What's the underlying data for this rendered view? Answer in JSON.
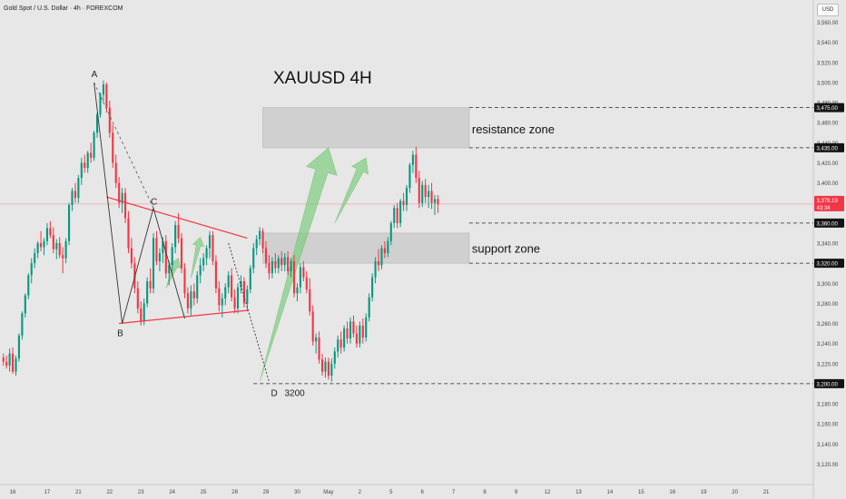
{
  "header": {
    "title": "Gold Spot / U.S. Dollar · 4h · FOREXCOM"
  },
  "currency_button": "USD",
  "annotations": {
    "main_title": "XAUUSD  4H",
    "resistance": "resistance zone",
    "support": "support zone",
    "label_a": "A",
    "label_b": "B",
    "label_c": "C",
    "label_d": "D",
    "d_value": "3200"
  },
  "colors": {
    "up": "#089981",
    "down": "#f23645",
    "triangle": "#f23645",
    "arrow": "#7fcc7f",
    "zone": "#d0d0d0",
    "background": "#e7e7e7"
  },
  "chart_data": {
    "type": "candlestick",
    "symbol": "XAUUSD",
    "timeframe": "4h",
    "ylim": [
      3105,
      3575
    ],
    "y_ticks": [
      3120,
      3140,
      3160,
      3180,
      3200,
      3220,
      3240,
      3260,
      3280,
      3300,
      3320,
      3340,
      3360,
      3380,
      3400,
      3420,
      3440,
      3460,
      3480,
      3500,
      3520,
      3540,
      3560
    ],
    "y_tick_labels": [
      "3,120.00",
      "3,140.00",
      "3,160.00",
      "3,180.00",
      "3,200.00",
      "3,220.00",
      "3,240.00",
      "3,260.00",
      "3,280.00",
      "3,300.00",
      "3,320.00",
      "3,340.00",
      "3,360.00",
      "3,380.00",
      "3,400.00",
      "3,420.00",
      "3,440.00",
      "3,460.00",
      "3,480.00",
      "3,500.00",
      "3,520.00",
      "3,540.00",
      "3,560.00"
    ],
    "x_labels": [
      {
        "label": "16",
        "i": 3
      },
      {
        "label": "17",
        "i": 14
      },
      {
        "label": "21",
        "i": 24
      },
      {
        "label": "22",
        "i": 34
      },
      {
        "label": "23",
        "i": 44
      },
      {
        "label": "24",
        "i": 54
      },
      {
        "label": "25",
        "i": 64
      },
      {
        "label": "28",
        "i": 74
      },
      {
        "label": "29",
        "i": 84
      },
      {
        "label": "30",
        "i": 94
      },
      {
        "label": "May",
        "i": 104
      },
      {
        "label": "2",
        "i": 114
      },
      {
        "label": "5",
        "i": 124
      },
      {
        "label": "6",
        "i": 134
      },
      {
        "label": "7",
        "i": 144
      },
      {
        "label": "8",
        "i": 154
      },
      {
        "label": "9",
        "i": 164
      },
      {
        "label": "12",
        "i": 174
      },
      {
        "label": "13",
        "i": 184
      },
      {
        "label": "14",
        "i": 194
      },
      {
        "label": "15",
        "i": 204
      },
      {
        "label": "16",
        "i": 214
      },
      {
        "label": "19",
        "i": 224
      },
      {
        "label": "20",
        "i": 234
      },
      {
        "label": "21",
        "i": 244
      }
    ],
    "slot_count": 259,
    "candles": [
      [
        3226,
        3230,
        3218,
        3222
      ],
      [
        3222,
        3228,
        3215,
        3218
      ],
      [
        3218,
        3235,
        3212,
        3230
      ],
      [
        3230,
        3236,
        3210,
        3212
      ],
      [
        3212,
        3228,
        3208,
        3225
      ],
      [
        3225,
        3250,
        3222,
        3248
      ],
      [
        3248,
        3272,
        3244,
        3270
      ],
      [
        3270,
        3290,
        3266,
        3288
      ],
      [
        3288,
        3310,
        3284,
        3308
      ],
      [
        3308,
        3325,
        3300,
        3320
      ],
      [
        3320,
        3335,
        3315,
        3330
      ],
      [
        3330,
        3342,
        3325,
        3340
      ],
      [
        3340,
        3352,
        3332,
        3336
      ],
      [
        3336,
        3345,
        3328,
        3342
      ],
      [
        3342,
        3360,
        3338,
        3355
      ],
      [
        3355,
        3362,
        3345,
        3348
      ],
      [
        3348,
        3356,
        3330,
        3334
      ],
      [
        3334,
        3344,
        3324,
        3340
      ],
      [
        3340,
        3346,
        3325,
        3328
      ],
      [
        3328,
        3336,
        3310,
        3325
      ],
      [
        3325,
        3345,
        3320,
        3342
      ],
      [
        3342,
        3380,
        3338,
        3378
      ],
      [
        3378,
        3395,
        3372,
        3392
      ],
      [
        3392,
        3400,
        3380,
        3385
      ],
      [
        3385,
        3408,
        3380,
        3405
      ],
      [
        3405,
        3425,
        3398,
        3420
      ],
      [
        3420,
        3428,
        3410,
        3415
      ],
      [
        3415,
        3432,
        3410,
        3430
      ],
      [
        3430,
        3440,
        3420,
        3425
      ],
      [
        3425,
        3452,
        3422,
        3450
      ],
      [
        3450,
        3470,
        3445,
        3468
      ],
      [
        3468,
        3490,
        3465,
        3488
      ],
      [
        3488,
        3502,
        3480,
        3498
      ],
      [
        3498,
        3500,
        3470,
        3475
      ],
      [
        3475,
        3482,
        3445,
        3450
      ],
      [
        3450,
        3458,
        3415,
        3420
      ],
      [
        3420,
        3428,
        3395,
        3400
      ],
      [
        3400,
        3406,
        3375,
        3380
      ],
      [
        3380,
        3395,
        3370,
        3390
      ],
      [
        3390,
        3395,
        3360,
        3365
      ],
      [
        3365,
        3372,
        3330,
        3335
      ],
      [
        3335,
        3345,
        3315,
        3320
      ],
      [
        3320,
        3326,
        3290,
        3295
      ],
      [
        3295,
        3302,
        3270,
        3275
      ],
      [
        3275,
        3282,
        3258,
        3262
      ],
      [
        3262,
        3285,
        3258,
        3280
      ],
      [
        3280,
        3306,
        3276,
        3302
      ],
      [
        3302,
        3315,
        3290,
        3295
      ],
      [
        3295,
        3350,
        3290,
        3345
      ],
      [
        3345,
        3352,
        3318,
        3322
      ],
      [
        3322,
        3335,
        3312,
        3330
      ],
      [
        3330,
        3346,
        3320,
        3342
      ],
      [
        3342,
        3348,
        3305,
        3310
      ],
      [
        3310,
        3322,
        3298,
        3318
      ],
      [
        3318,
        3340,
        3312,
        3336
      ],
      [
        3336,
        3362,
        3330,
        3358
      ],
      [
        3358,
        3370,
        3340,
        3345
      ],
      [
        3345,
        3350,
        3310,
        3315
      ],
      [
        3315,
        3320,
        3285,
        3290
      ],
      [
        3290,
        3296,
        3270,
        3275
      ],
      [
        3275,
        3298,
        3268,
        3292
      ],
      [
        3292,
        3300,
        3278,
        3285
      ],
      [
        3285,
        3312,
        3280,
        3308
      ],
      [
        3308,
        3325,
        3300,
        3318
      ],
      [
        3318,
        3330,
        3312,
        3325
      ],
      [
        3325,
        3338,
        3318,
        3335
      ],
      [
        3335,
        3352,
        3325,
        3348
      ],
      [
        3348,
        3352,
        3318,
        3322
      ],
      [
        3322,
        3328,
        3290,
        3295
      ],
      [
        3295,
        3302,
        3272,
        3278
      ],
      [
        3278,
        3290,
        3266,
        3285
      ],
      [
        3285,
        3300,
        3278,
        3296
      ],
      [
        3296,
        3312,
        3290,
        3308
      ],
      [
        3308,
        3315,
        3282,
        3286
      ],
      [
        3286,
        3294,
        3270,
        3275
      ],
      [
        3275,
        3300,
        3270,
        3296
      ],
      [
        3296,
        3308,
        3290,
        3302
      ],
      [
        3302,
        3306,
        3276,
        3280
      ],
      [
        3280,
        3298,
        3272,
        3294
      ],
      [
        3294,
        3318,
        3290,
        3315
      ],
      [
        3315,
        3340,
        3310,
        3335
      ],
      [
        3335,
        3348,
        3328,
        3344
      ],
      [
        3344,
        3356,
        3338,
        3352
      ],
      [
        3352,
        3355,
        3330,
        3335
      ],
      [
        3335,
        3342,
        3315,
        3320
      ],
      [
        3320,
        3328,
        3304,
        3310
      ],
      [
        3310,
        3326,
        3305,
        3322
      ],
      [
        3322,
        3330,
        3310,
        3315
      ],
      [
        3315,
        3328,
        3310,
        3325
      ],
      [
        3325,
        3332,
        3312,
        3318
      ],
      [
        3318,
        3330,
        3312,
        3326
      ],
      [
        3326,
        3332,
        3308,
        3312
      ],
      [
        3312,
        3325,
        3306,
        3322
      ],
      [
        3322,
        3328,
        3286,
        3290
      ],
      [
        3290,
        3300,
        3282,
        3296
      ],
      [
        3296,
        3320,
        3290,
        3316
      ],
      [
        3316,
        3322,
        3302,
        3306
      ],
      [
        3306,
        3312,
        3290,
        3294
      ],
      [
        3294,
        3305,
        3268,
        3272
      ],
      [
        3272,
        3278,
        3238,
        3242
      ],
      [
        3242,
        3250,
        3230,
        3246
      ],
      [
        3246,
        3252,
        3220,
        3224
      ],
      [
        3224,
        3230,
        3208,
        3212
      ],
      [
        3212,
        3226,
        3206,
        3222
      ],
      [
        3222,
        3226,
        3204,
        3208
      ],
      [
        3208,
        3225,
        3202,
        3220
      ],
      [
        3220,
        3236,
        3215,
        3232
      ],
      [
        3232,
        3248,
        3226,
        3244
      ],
      [
        3244,
        3252,
        3230,
        3236
      ],
      [
        3236,
        3258,
        3232,
        3255
      ],
      [
        3255,
        3262,
        3240,
        3245
      ],
      [
        3245,
        3266,
        3240,
        3262
      ],
      [
        3262,
        3268,
        3246,
        3250
      ],
      [
        3250,
        3258,
        3236,
        3240
      ],
      [
        3240,
        3262,
        3236,
        3258
      ],
      [
        3258,
        3265,
        3240,
        3246
      ],
      [
        3246,
        3270,
        3242,
        3266
      ],
      [
        3266,
        3290,
        3262,
        3286
      ],
      [
        3286,
        3310,
        3282,
        3306
      ],
      [
        3306,
        3326,
        3300,
        3322
      ],
      [
        3322,
        3334,
        3312,
        3318
      ],
      [
        3318,
        3338,
        3314,
        3335
      ],
      [
        3335,
        3342,
        3325,
        3330
      ],
      [
        3330,
        3346,
        3326,
        3342
      ],
      [
        3342,
        3362,
        3338,
        3360
      ],
      [
        3360,
        3378,
        3355,
        3375
      ],
      [
        3375,
        3380,
        3355,
        3360
      ],
      [
        3360,
        3384,
        3356,
        3382
      ],
      [
        3382,
        3390,
        3372,
        3378
      ],
      [
        3378,
        3398,
        3372,
        3395
      ],
      [
        3395,
        3420,
        3390,
        3418
      ],
      [
        3418,
        3432,
        3410,
        3428
      ],
      [
        3428,
        3436,
        3400,
        3405
      ],
      [
        3405,
        3412,
        3375,
        3380
      ],
      [
        3380,
        3402,
        3376,
        3398
      ],
      [
        3398,
        3404,
        3380,
        3386
      ],
      [
        3386,
        3398,
        3375,
        3392
      ],
      [
        3392,
        3400,
        3374,
        3380
      ],
      [
        3380,
        3388,
        3368,
        3384
      ],
      [
        3384,
        3388,
        3370,
        3379
      ]
    ],
    "triangle_upper": [
      [
        33,
        3386
      ],
      [
        78,
        3345
      ]
    ],
    "triangle_lower": [
      [
        37,
        3260
      ],
      [
        78,
        3273
      ]
    ],
    "abc_path": [
      [
        29,
        3500
      ],
      [
        38,
        3260
      ],
      [
        48,
        3375
      ],
      [
        58,
        3265
      ]
    ],
    "ac_dashed": [
      [
        29,
        3500
      ],
      [
        48,
        3375
      ]
    ],
    "cd_dashed": [
      [
        72,
        3340
      ],
      [
        85,
        3202
      ]
    ],
    "resistance_zone": [
      3435,
      3475
    ],
    "support_zone": [
      3320,
      3350
    ],
    "zone_x": [
      83,
      149
    ],
    "price_levels": [
      {
        "value": 3475,
        "label": "3,475.00",
        "x_from": 149
      },
      {
        "value": 3435,
        "label": "3,435.00",
        "x_from": 149
      },
      {
        "value": 3360,
        "label": "3,360.00",
        "x_from": 149
      },
      {
        "value": 3320,
        "label": "3,320.00",
        "x_from": 149
      },
      {
        "value": 3200,
        "label": "3,200.00",
        "x_from": 80
      }
    ],
    "current_price": {
      "value": 3379,
      "label": "3,378.19",
      "countdown": "43:34"
    },
    "arrows": [
      {
        "from": [
          82,
          3202
        ],
        "to": [
          104,
          3435
        ],
        "width": 14
      },
      {
        "from": [
          106,
          3360
        ],
        "to": [
          116,
          3425
        ],
        "width": 8
      },
      {
        "from": [
          52,
          3295
        ],
        "to": [
          56,
          3325
        ],
        "width": 5
      },
      {
        "from": [
          60,
          3305
        ],
        "to": [
          63,
          3346
        ],
        "width": 5
      }
    ]
  }
}
